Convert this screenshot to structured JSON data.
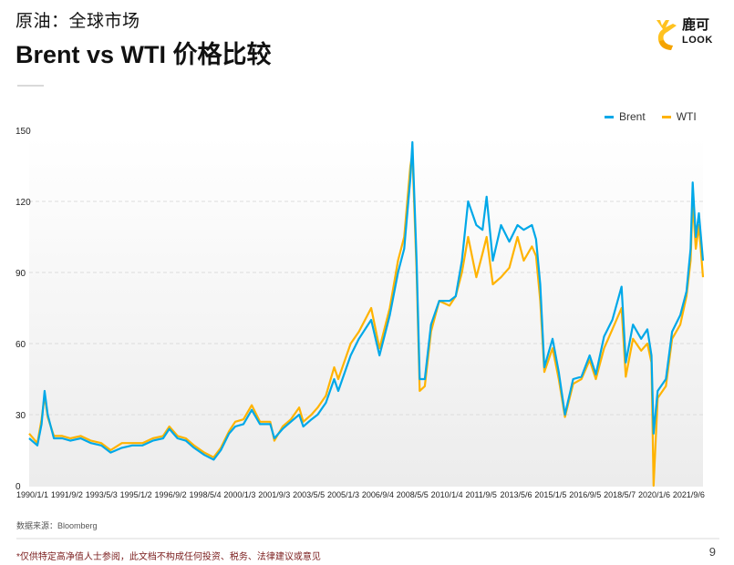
{
  "header": {
    "subtitle": "原油：全球市场",
    "title": "Brent vs WTI 价格比较"
  },
  "logo": {
    "name": "鹿可",
    "sub": "LOOK",
    "colors": {
      "primary": "#f5a300",
      "secondary": "#ffc21f"
    }
  },
  "footer": {
    "source": "数据来源：Bloomberg",
    "disclaimer": "*仅供特定高净值人士参阅，此文档不构成任何投资、税务、法律建议或意见",
    "page_number": "9"
  },
  "chart_data": {
    "type": "line",
    "title": "Brent vs WTI 价格比较",
    "xlabel": "",
    "ylabel": "",
    "ylim": [
      0,
      150
    ],
    "yticks": [
      0,
      30,
      60,
      90,
      120,
      150
    ],
    "grid": true,
    "legend_position": "top-right",
    "x_tick_labels": [
      "1990/1/1",
      "1991/9/2",
      "1993/5/3",
      "1995/1/2",
      "1996/9/2",
      "1998/5/4",
      "2000/1/3",
      "2001/9/3",
      "2003/5/5",
      "2005/1/3",
      "2006/9/4",
      "2008/5/5",
      "2010/1/4",
      "2011/9/5",
      "2013/5/6",
      "2015/1/5",
      "2016/9/5",
      "2018/5/7",
      "2020/1/6",
      "2021/9/6"
    ],
    "x": [
      1990.0,
      1990.4,
      1990.6,
      1990.75,
      1990.9,
      1991.2,
      1991.6,
      1992.0,
      1992.5,
      1993.0,
      1993.5,
      1993.95,
      1994.5,
      1995.0,
      1995.5,
      1996.0,
      1996.5,
      1996.8,
      1997.2,
      1997.6,
      1998.0,
      1998.5,
      1998.95,
      1999.3,
      1999.7,
      2000.0,
      2000.4,
      2000.8,
      2001.2,
      2001.7,
      2001.9,
      2002.3,
      2002.7,
      2003.1,
      2003.3,
      2003.7,
      2004.0,
      2004.4,
      2004.8,
      2005.0,
      2005.6,
      2006.0,
      2006.6,
      2007.0,
      2007.5,
      2007.9,
      2008.2,
      2008.5,
      2008.6,
      2008.8,
      2008.95,
      2009.2,
      2009.5,
      2009.9,
      2010.4,
      2010.7,
      2011.0,
      2011.3,
      2011.7,
      2012.0,
      2012.2,
      2012.5,
      2012.9,
      2013.3,
      2013.7,
      2014.0,
      2014.4,
      2014.6,
      2014.8,
      2015.0,
      2015.4,
      2015.7,
      2016.0,
      2016.4,
      2016.8,
      2017.2,
      2017.5,
      2017.9,
      2018.3,
      2018.75,
      2018.95,
      2019.3,
      2019.7,
      2020.0,
      2020.2,
      2020.3,
      2020.5,
      2020.9,
      2021.2,
      2021.6,
      2021.9,
      2022.1,
      2022.2,
      2022.35,
      2022.5,
      2022.7
    ],
    "series": [
      {
        "name": "Brent",
        "color": "#00a8e8",
        "values": [
          20,
          17,
          26,
          40,
          30,
          20,
          20,
          19,
          20,
          18,
          17,
          14,
          16,
          17,
          17,
          19,
          20,
          24,
          20,
          19,
          16,
          13,
          11,
          15,
          22,
          25,
          26,
          32,
          26,
          26,
          20,
          24,
          27,
          30,
          25,
          28,
          30,
          35,
          45,
          40,
          55,
          62,
          70,
          55,
          72,
          90,
          100,
          130,
          145,
          95,
          45,
          45,
          68,
          78,
          78,
          80,
          95,
          120,
          110,
          108,
          122,
          95,
          110,
          103,
          110,
          108,
          110,
          104,
          85,
          50,
          62,
          48,
          30,
          45,
          46,
          55,
          47,
          63,
          70,
          84,
          52,
          68,
          62,
          66,
          55,
          22,
          40,
          45,
          65,
          72,
          82,
          100,
          128,
          105,
          115,
          95
        ]
      },
      {
        "name": "WTI",
        "color": "#ffb300",
        "values": [
          22,
          18,
          28,
          38,
          29,
          21,
          21,
          20,
          21,
          19,
          18,
          15,
          18,
          18,
          18,
          20,
          21,
          25,
          21,
          20,
          17,
          14,
          12,
          16,
          23,
          27,
          28,
          34,
          27,
          27,
          19,
          25,
          28,
          33,
          27,
          30,
          33,
          38,
          50,
          45,
          60,
          65,
          75,
          58,
          75,
          95,
          105,
          135,
          140,
          90,
          40,
          42,
          65,
          78,
          76,
          80,
          90,
          105,
          88,
          98,
          105,
          85,
          88,
          92,
          105,
          95,
          101,
          97,
          78,
          48,
          58,
          45,
          29,
          43,
          45,
          53,
          45,
          58,
          66,
          75,
          46,
          62,
          57,
          60,
          52,
          0,
          37,
          42,
          62,
          68,
          80,
          95,
          120,
          100,
          110,
          88
        ]
      }
    ]
  }
}
